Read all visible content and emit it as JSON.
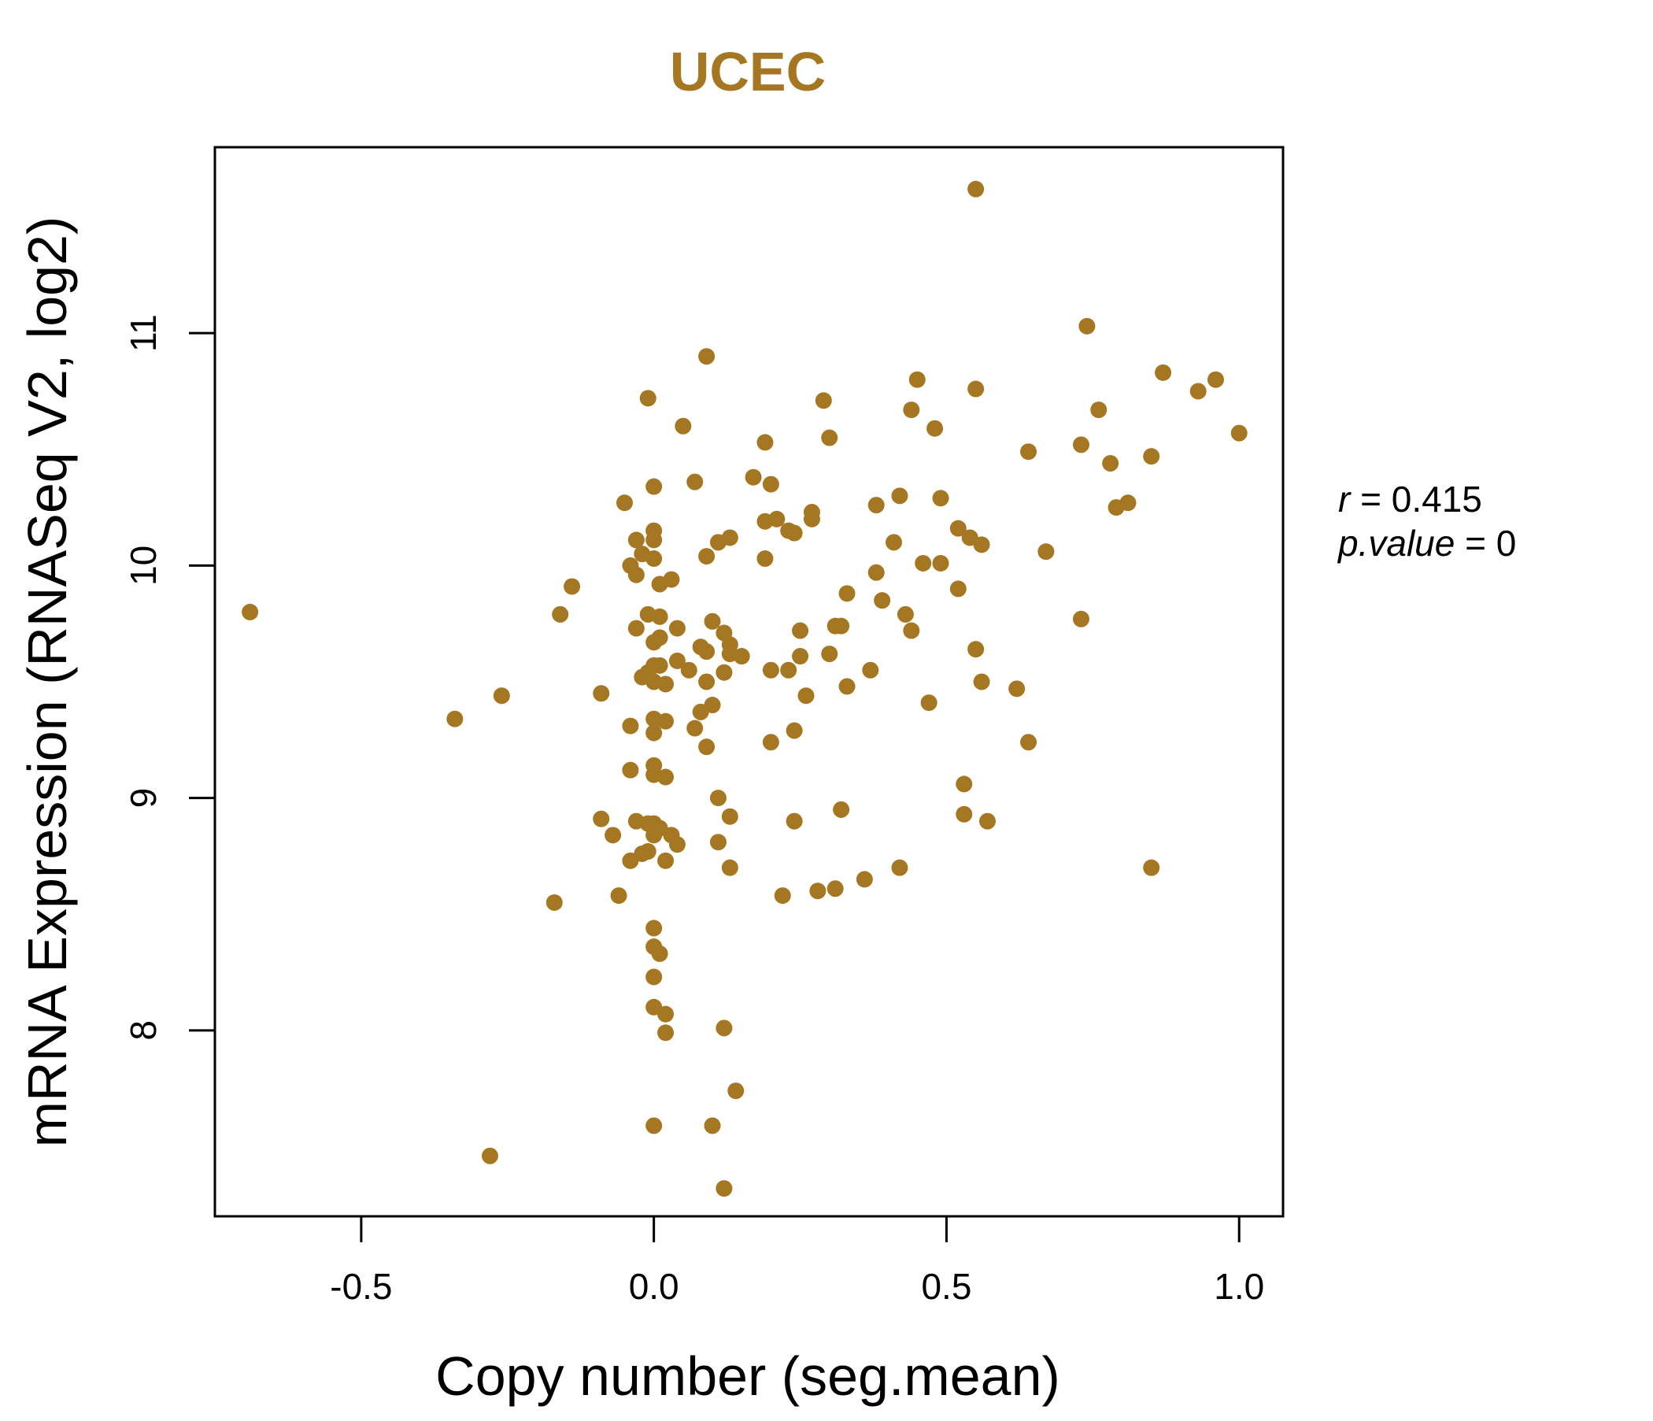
{
  "chart_data": {
    "type": "scatter",
    "title": "UCEC",
    "xlabel": "Copy number (seg.mean)",
    "ylabel": "mRNA Expression (RNASeq V2, log2)",
    "xlim": [
      -0.75,
      1.075
    ],
    "ylim": [
      7.2,
      11.8
    ],
    "x_ticks": [
      -0.5,
      0.0,
      0.5,
      1.0
    ],
    "x_tick_labels": [
      "-0.5",
      "0.0",
      "0.5",
      "1.0"
    ],
    "y_ticks": [
      8,
      9,
      10,
      11
    ],
    "y_tick_labels": [
      "8",
      "9",
      "10",
      "11"
    ],
    "grid": false,
    "legend": "none",
    "point_color": "#A67722",
    "title_color": "#A67722",
    "stats": {
      "r_label": "r",
      "r_value": "0.415",
      "p_label": "p.value",
      "p_value": "0"
    },
    "points": [
      [
        -0.69,
        9.8
      ],
      [
        -0.34,
        9.34
      ],
      [
        -0.28,
        7.46
      ],
      [
        -0.26,
        9.44
      ],
      [
        -0.17,
        8.55
      ],
      [
        -0.16,
        9.79
      ],
      [
        -0.14,
        9.91
      ],
      [
        -0.09,
        8.91
      ],
      [
        -0.09,
        9.45
      ],
      [
        -0.07,
        8.84
      ],
      [
        -0.06,
        8.58
      ],
      [
        -0.05,
        10.27
      ],
      [
        -0.04,
        9.31
      ],
      [
        -0.04,
        9.12
      ],
      [
        -0.04,
        10.0
      ],
      [
        -0.04,
        8.73
      ],
      [
        -0.03,
        9.73
      ],
      [
        -0.03,
        9.96
      ],
      [
        -0.03,
        10.11
      ],
      [
        -0.03,
        8.9
      ],
      [
        -0.02,
        10.05
      ],
      [
        -0.02,
        8.76
      ],
      [
        -0.02,
        9.52
      ],
      [
        -0.01,
        9.79
      ],
      [
        -0.01,
        9.54
      ],
      [
        -0.01,
        8.89
      ],
      [
        -0.01,
        8.77
      ],
      [
        -0.01,
        10.72
      ],
      [
        0.0,
        10.03
      ],
      [
        0.0,
        10.11
      ],
      [
        0.0,
        10.15
      ],
      [
        0.0,
        10.34
      ],
      [
        0.0,
        9.57
      ],
      [
        0.0,
        9.67
      ],
      [
        0.0,
        9.5
      ],
      [
        0.0,
        9.34
      ],
      [
        0.0,
        9.28
      ],
      [
        0.0,
        9.14
      ],
      [
        0.0,
        9.1
      ],
      [
        0.0,
        8.89
      ],
      [
        0.0,
        8.84
      ],
      [
        0.0,
        8.44
      ],
      [
        0.0,
        8.36
      ],
      [
        0.0,
        8.23
      ],
      [
        0.0,
        8.1
      ],
      [
        0.0,
        7.59
      ],
      [
        0.01,
        9.92
      ],
      [
        0.01,
        9.57
      ],
      [
        0.01,
        9.78
      ],
      [
        0.01,
        9.69
      ],
      [
        0.01,
        8.87
      ],
      [
        0.01,
        8.33
      ],
      [
        0.02,
        9.49
      ],
      [
        0.02,
        9.33
      ],
      [
        0.02,
        9.09
      ],
      [
        0.02,
        8.73
      ],
      [
        0.02,
        8.07
      ],
      [
        0.02,
        7.99
      ],
      [
        0.03,
        9.94
      ],
      [
        0.03,
        8.84
      ],
      [
        0.04,
        9.73
      ],
      [
        0.04,
        9.59
      ],
      [
        0.04,
        8.8
      ],
      [
        0.05,
        10.6
      ],
      [
        0.06,
        9.55
      ],
      [
        0.07,
        10.36
      ],
      [
        0.07,
        9.3
      ],
      [
        0.08,
        9.37
      ],
      [
        0.08,
        9.65
      ],
      [
        0.09,
        10.9
      ],
      [
        0.09,
        9.63
      ],
      [
        0.09,
        9.5
      ],
      [
        0.09,
        9.22
      ],
      [
        0.09,
        10.04
      ],
      [
        0.1,
        9.4
      ],
      [
        0.1,
        9.76
      ],
      [
        0.1,
        7.59
      ],
      [
        0.11,
        9.0
      ],
      [
        0.11,
        10.1
      ],
      [
        0.11,
        8.81
      ],
      [
        0.12,
        9.71
      ],
      [
        0.12,
        9.54
      ],
      [
        0.12,
        8.01
      ],
      [
        0.12,
        7.32
      ],
      [
        0.13,
        10.12
      ],
      [
        0.13,
        9.62
      ],
      [
        0.13,
        9.66
      ],
      [
        0.13,
        8.92
      ],
      [
        0.13,
        8.7
      ],
      [
        0.14,
        7.74
      ],
      [
        0.15,
        9.61
      ],
      [
        0.17,
        10.38
      ],
      [
        0.19,
        10.53
      ],
      [
        0.19,
        10.19
      ],
      [
        0.19,
        10.03
      ],
      [
        0.2,
        10.35
      ],
      [
        0.2,
        9.55
      ],
      [
        0.2,
        9.24
      ],
      [
        0.21,
        10.2
      ],
      [
        0.22,
        8.58
      ],
      [
        0.23,
        9.55
      ],
      [
        0.23,
        10.15
      ],
      [
        0.24,
        10.14
      ],
      [
        0.24,
        8.9
      ],
      [
        0.24,
        9.29
      ],
      [
        0.25,
        9.72
      ],
      [
        0.25,
        9.61
      ],
      [
        0.26,
        9.44
      ],
      [
        0.27,
        10.23
      ],
      [
        0.27,
        10.2
      ],
      [
        0.28,
        8.6
      ],
      [
        0.29,
        10.71
      ],
      [
        0.3,
        10.55
      ],
      [
        0.3,
        9.62
      ],
      [
        0.31,
        9.74
      ],
      [
        0.31,
        8.61
      ],
      [
        0.32,
        9.74
      ],
      [
        0.32,
        8.95
      ],
      [
        0.33,
        9.88
      ],
      [
        0.33,
        9.48
      ],
      [
        0.36,
        8.65
      ],
      [
        0.37,
        9.55
      ],
      [
        0.38,
        9.97
      ],
      [
        0.38,
        10.26
      ],
      [
        0.39,
        9.85
      ],
      [
        0.41,
        10.1
      ],
      [
        0.42,
        10.3
      ],
      [
        0.42,
        8.7
      ],
      [
        0.43,
        9.79
      ],
      [
        0.44,
        10.67
      ],
      [
        0.44,
        9.72
      ],
      [
        0.45,
        10.8
      ],
      [
        0.46,
        10.01
      ],
      [
        0.47,
        9.41
      ],
      [
        0.48,
        10.59
      ],
      [
        0.49,
        10.29
      ],
      [
        0.49,
        10.01
      ],
      [
        0.52,
        10.16
      ],
      [
        0.52,
        9.9
      ],
      [
        0.53,
        9.06
      ],
      [
        0.53,
        8.93
      ],
      [
        0.54,
        10.12
      ],
      [
        0.55,
        11.62
      ],
      [
        0.55,
        10.76
      ],
      [
        0.55,
        9.64
      ],
      [
        0.56,
        10.09
      ],
      [
        0.56,
        9.5
      ],
      [
        0.57,
        8.9
      ],
      [
        0.62,
        9.47
      ],
      [
        0.64,
        9.24
      ],
      [
        0.64,
        10.49
      ],
      [
        0.67,
        10.06
      ],
      [
        0.73,
        10.52
      ],
      [
        0.73,
        9.77
      ],
      [
        0.74,
        11.03
      ],
      [
        0.76,
        10.67
      ],
      [
        0.78,
        10.44
      ],
      [
        0.79,
        10.25
      ],
      [
        0.81,
        10.27
      ],
      [
        0.85,
        10.47
      ],
      [
        0.85,
        8.7
      ],
      [
        0.87,
        10.83
      ],
      [
        0.93,
        10.75
      ],
      [
        0.96,
        10.8
      ],
      [
        1.0,
        10.57
      ]
    ]
  }
}
